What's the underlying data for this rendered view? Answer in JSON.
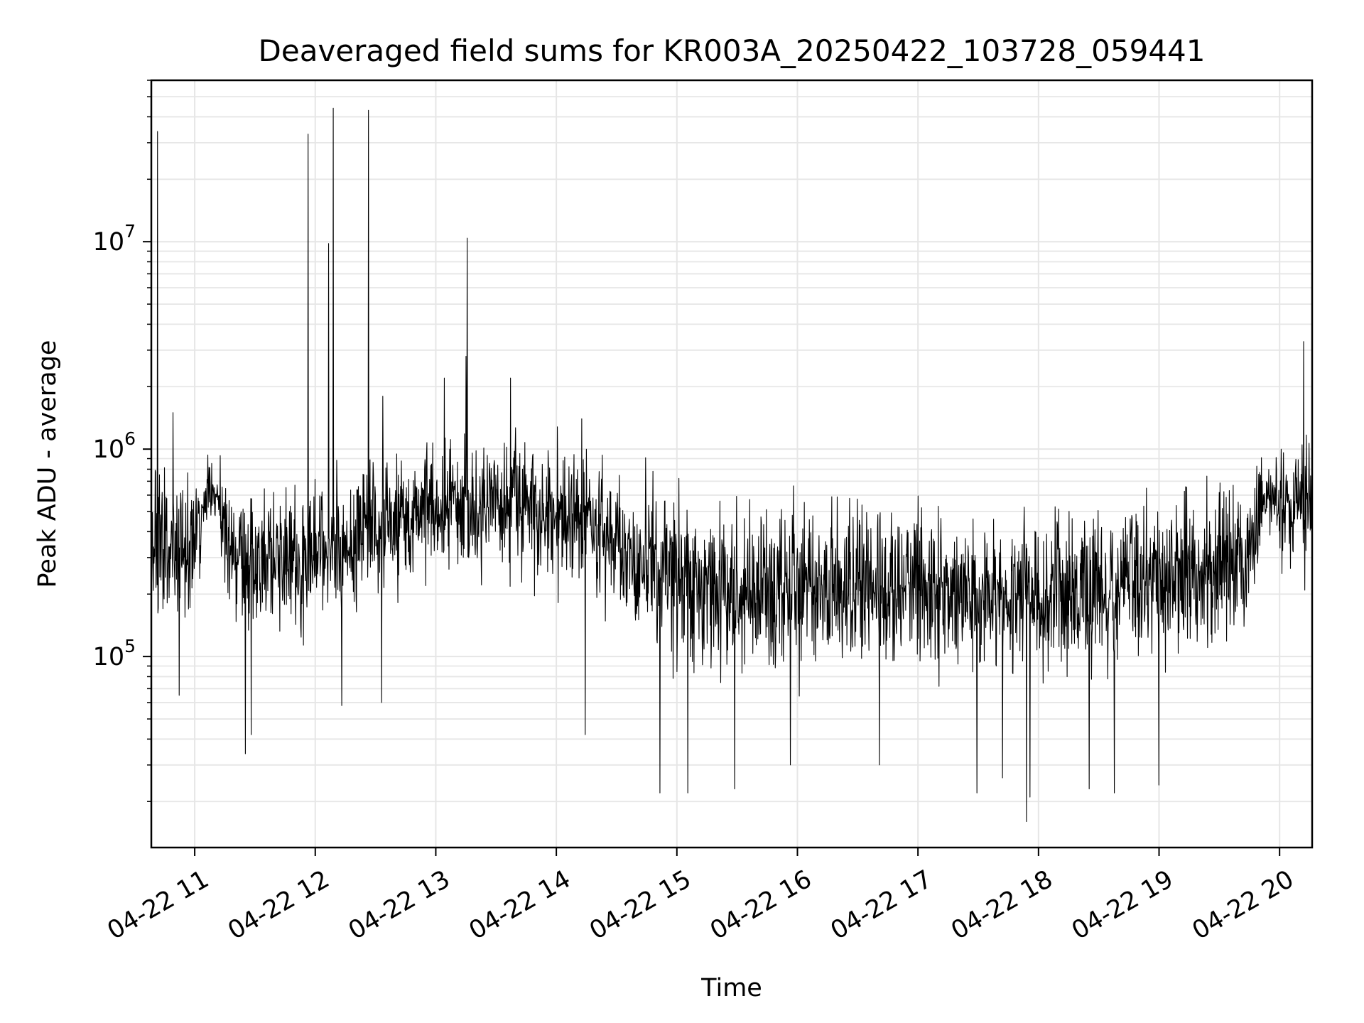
{
  "chart_data": {
    "type": "line",
    "title": "Deaveraged field sums for KR003A_20250422_103728_059441",
    "xlabel": "Time",
    "ylabel": "Peak ADU - average",
    "yscale": "log",
    "xlim": [
      10.64,
      20.27
    ],
    "ylim": [
      12000,
      60000000
    ],
    "grid": true,
    "line_color": "#000000",
    "x_ticks": [
      {
        "value": 11,
        "label": "04-22 11"
      },
      {
        "value": 12,
        "label": "04-22 12"
      },
      {
        "value": 13,
        "label": "04-22 13"
      },
      {
        "value": 14,
        "label": "04-22 14"
      },
      {
        "value": 15,
        "label": "04-22 15"
      },
      {
        "value": 16,
        "label": "04-22 16"
      },
      {
        "value": 17,
        "label": "04-22 17"
      },
      {
        "value": 18,
        "label": "04-22 18"
      },
      {
        "value": 19,
        "label": "04-22 19"
      },
      {
        "value": 20,
        "label": "04-22 20"
      }
    ],
    "y_ticks": [
      {
        "value": 100000,
        "base": "10",
        "exp": "5"
      },
      {
        "value": 1000000,
        "base": "10",
        "exp": "6"
      },
      {
        "value": 10000000,
        "base": "10",
        "exp": "7"
      }
    ],
    "series": [
      {
        "name": "deaveraged field sum",
        "baseline": [
          {
            "x": 10.64,
            "y": 380000
          },
          {
            "x": 10.85,
            "y": 300000
          },
          {
            "x": 11.0,
            "y": 330000
          },
          {
            "x": 11.12,
            "y": 700000
          },
          {
            "x": 11.3,
            "y": 320000
          },
          {
            "x": 11.6,
            "y": 280000
          },
          {
            "x": 11.9,
            "y": 300000
          },
          {
            "x": 12.2,
            "y": 340000
          },
          {
            "x": 12.5,
            "y": 400000
          },
          {
            "x": 12.8,
            "y": 480000
          },
          {
            "x": 13.2,
            "y": 550000
          },
          {
            "x": 13.6,
            "y": 560000
          },
          {
            "x": 14.0,
            "y": 500000
          },
          {
            "x": 14.3,
            "y": 440000
          },
          {
            "x": 14.7,
            "y": 280000
          },
          {
            "x": 15.2,
            "y": 220000
          },
          {
            "x": 16.0,
            "y": 215000
          },
          {
            "x": 17.0,
            "y": 215000
          },
          {
            "x": 17.8,
            "y": 190000
          },
          {
            "x": 18.5,
            "y": 215000
          },
          {
            "x": 19.2,
            "y": 240000
          },
          {
            "x": 19.7,
            "y": 310000
          },
          {
            "x": 19.9,
            "y": 600000
          },
          {
            "x": 20.27,
            "y": 520000
          }
        ],
        "peaks": [
          {
            "x": 10.69,
            "y": 34000000
          },
          {
            "x": 10.82,
            "y": 1500000
          },
          {
            "x": 11.94,
            "y": 33000000
          },
          {
            "x": 12.11,
            "y": 9800000
          },
          {
            "x": 12.15,
            "y": 44000000
          },
          {
            "x": 12.44,
            "y": 43000000
          },
          {
            "x": 12.56,
            "y": 1800000
          },
          {
            "x": 13.07,
            "y": 2200000
          },
          {
            "x": 13.25,
            "y": 2800000
          },
          {
            "x": 13.26,
            "y": 10400000
          },
          {
            "x": 13.62,
            "y": 2200000
          },
          {
            "x": 14.21,
            "y": 1400000
          },
          {
            "x": 20.2,
            "y": 3300000
          }
        ],
        "dips": [
          {
            "x": 10.87,
            "y": 65000
          },
          {
            "x": 11.42,
            "y": 34000
          },
          {
            "x": 11.47,
            "y": 42000
          },
          {
            "x": 12.22,
            "y": 58000
          },
          {
            "x": 12.55,
            "y": 60000
          },
          {
            "x": 14.24,
            "y": 42000
          },
          {
            "x": 14.86,
            "y": 22000
          },
          {
            "x": 15.09,
            "y": 22000
          },
          {
            "x": 15.48,
            "y": 23000
          },
          {
            "x": 15.94,
            "y": 30000
          },
          {
            "x": 16.68,
            "y": 30000
          },
          {
            "x": 17.49,
            "y": 22000
          },
          {
            "x": 17.7,
            "y": 26000
          },
          {
            "x": 17.9,
            "y": 16000
          },
          {
            "x": 17.93,
            "y": 21000
          },
          {
            "x": 18.42,
            "y": 23000
          },
          {
            "x": 18.63,
            "y": 22000
          },
          {
            "x": 19.0,
            "y": 24000
          }
        ]
      }
    ]
  }
}
